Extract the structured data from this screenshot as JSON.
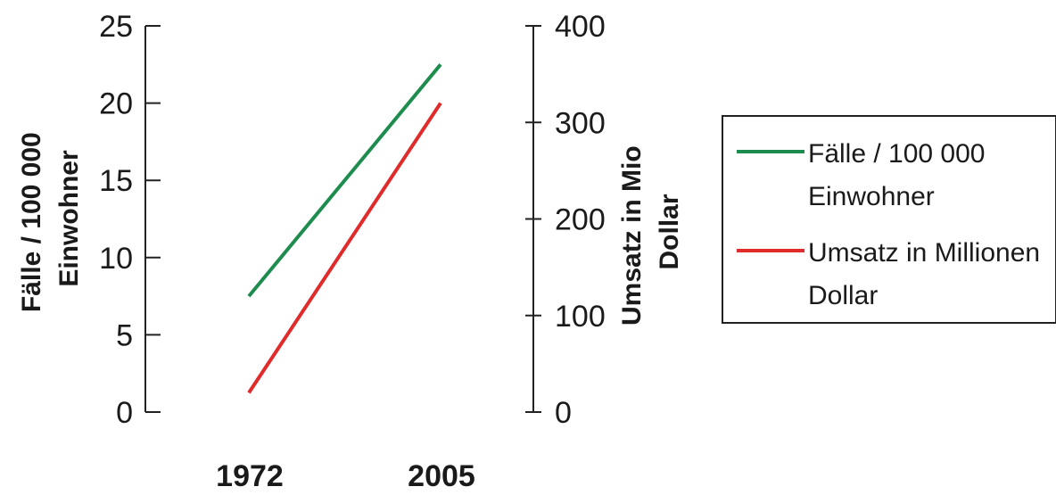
{
  "chart_data": {
    "type": "line",
    "categories": [
      "1972",
      "2005"
    ],
    "series": [
      {
        "name": "Fälle / 100 000 Einwohner",
        "axis": "left",
        "color": "#1e8c4e",
        "values": [
          7.5,
          22.5
        ]
      },
      {
        "name": "Umsatz in Millionen Dollar",
        "axis": "right",
        "color": "#e02b2b",
        "values": [
          20,
          320
        ]
      }
    ],
    "left_axis": {
      "label_lines": [
        "Fälle / 100 000",
        "Einwohner"
      ],
      "ylim": [
        0,
        25
      ],
      "ticks": [
        0,
        5,
        10,
        15,
        20,
        25
      ]
    },
    "right_axis": {
      "label_lines": [
        "Umsatz in Mio",
        "Dollar"
      ],
      "ylim": [
        0,
        400
      ],
      "ticks": [
        0,
        100,
        200,
        300,
        400
      ]
    },
    "legend": {
      "placement": "right",
      "entries": [
        {
          "lines": [
            "Fälle / 100 000",
            "Einwohner"
          ],
          "color": "#1e8c4e"
        },
        {
          "lines": [
            "Umsatz in Millionen",
            "Dollar"
          ],
          "color": "#e02b2b"
        }
      ]
    },
    "grid": false
  }
}
